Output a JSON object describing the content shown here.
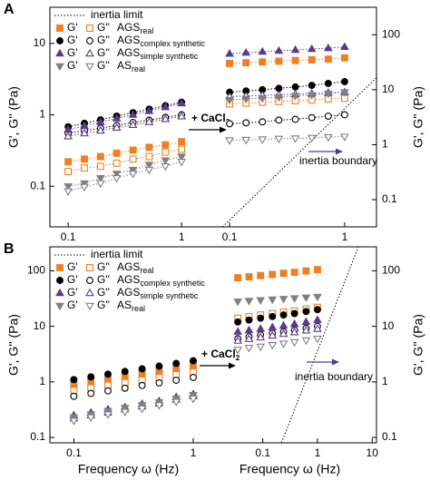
{
  "chart_data": [
    {
      "type": "scatter",
      "panel_label": "A",
      "ylabel": "G', G'' (Pa)",
      "xlog": true,
      "ylog": true,
      "xlim": [
        0.069,
        1.67
      ],
      "ylim": [
        0.027,
        32
      ],
      "xticks": [
        0.1,
        1
      ],
      "yticks": [
        0.1,
        1,
        10
      ],
      "x": [
        0.1,
        0.139,
        0.193,
        0.268,
        0.373,
        0.518,
        0.72,
        1.0
      ],
      "connect": true,
      "legend": {
        "inertia_label": "inertia limit",
        "moduli": [
          "G'",
          "G''"
        ]
      },
      "annotation": {
        "text": "+ CaCl",
        "sub": "2"
      },
      "series": [
        {
          "name": "AGS",
          "sub": "real",
          "color": "#f07f22",
          "marker": "square",
          "storage": [
            0.22,
            0.24,
            0.26,
            0.29,
            0.32,
            0.35,
            0.38,
            0.42
          ],
          "loss": [
            0.16,
            0.18,
            0.19,
            0.21,
            0.24,
            0.26,
            0.3,
            0.33
          ]
        },
        {
          "name": "AGS",
          "sub": "complex synthetic",
          "color": "#000000",
          "marker": "circle",
          "storage": [
            0.68,
            0.76,
            0.85,
            0.96,
            1.07,
            1.2,
            1.34,
            1.5
          ],
          "loss": [
            0.55,
            0.6,
            0.65,
            0.71,
            0.78,
            0.84,
            0.92,
            1.0
          ]
        },
        {
          "name": "AGS",
          "sub": "simple synthetic",
          "color": "#5b3a8e",
          "marker": "triangle-up",
          "storage": [
            0.62,
            0.7,
            0.79,
            0.89,
            1.0,
            1.13,
            1.28,
            1.45
          ],
          "loss": [
            0.5,
            0.55,
            0.6,
            0.66,
            0.72,
            0.79,
            0.87,
            0.95
          ]
        },
        {
          "name": "AS",
          "sub": "real",
          "color": "#808080",
          "marker": "triangle-down",
          "storage": [
            0.1,
            0.11,
            0.13,
            0.15,
            0.17,
            0.2,
            0.23,
            0.26
          ],
          "loss": [
            0.085,
            0.098,
            0.11,
            0.13,
            0.15,
            0.17,
            0.19,
            0.22
          ]
        }
      ]
    },
    {
      "type": "scatter",
      "ylabel": "G', G'' (Pa)",
      "xlog": true,
      "ylog": true,
      "xlim": [
        0.067,
        1.89
      ],
      "ylim": [
        0.032,
        316
      ],
      "xticks": [
        0.1,
        1
      ],
      "yticks": [
        0.1,
        1,
        10,
        100
      ],
      "x": [
        0.1,
        0.139,
        0.193,
        0.268,
        0.373,
        0.518,
        0.72,
        1.0
      ],
      "connect": true,
      "inertia": {
        "x": [
          0.087,
          1.89
        ],
        "y": [
          0.032,
          16.5
        ]
      },
      "boundary_label": "inertia boundary",
      "series": [
        {
          "color": "#f07f22",
          "marker": "square",
          "storage": [
            30,
            31,
            32,
            33,
            34,
            35,
            36,
            38
          ],
          "loss": [
            5.5,
            5.7,
            5.9,
            6.1,
            6.3,
            6.5,
            6.8,
            7
          ]
        },
        {
          "color": "#000000",
          "marker": "circle",
          "storage": [
            9,
            9.5,
            10,
            10.6,
            11.2,
            12,
            13,
            14
          ],
          "loss": [
            2.4,
            2.5,
            2.6,
            2.8,
            2.9,
            3.1,
            3.3,
            3.5
          ]
        },
        {
          "color": "#5b3a8e",
          "marker": "triangle-up",
          "storage": [
            45,
            47,
            49,
            51,
            53,
            55,
            57,
            60
          ],
          "loss": [
            7.5,
            7.7,
            7.9,
            8.1,
            8.3,
            8.5,
            8.8,
            9
          ]
        },
        {
          "color": "#808080",
          "marker": "triangle-down",
          "storage": [
            6.5,
            6.8,
            7,
            7.3,
            7.7,
            8,
            8.5,
            9
          ],
          "loss": [
            1.2,
            1.22,
            1.25,
            1.28,
            1.3,
            1.33,
            1.37,
            1.4
          ]
        }
      ]
    },
    {
      "type": "scatter",
      "panel_label": "B",
      "ylabel": "G', G'' (Pa)",
      "xlabel": "Frequency ω (Hz)",
      "xlog": true,
      "ylog": true,
      "xlim": [
        0.063,
        1.3
      ],
      "ylim": [
        0.08,
        270
      ],
      "xticks": [
        0.1,
        1
      ],
      "yticks": [
        0.1,
        1,
        10,
        100
      ],
      "x": [
        0.1,
        0.139,
        0.193,
        0.268,
        0.373,
        0.518,
        0.72,
        1.0
      ],
      "connect": false,
      "legend": {
        "inertia_label": "inertia limit",
        "moduli": [
          "G'",
          "G''"
        ]
      },
      "annotation": {
        "text": "+ CaCl",
        "sub": "2"
      },
      "series": [
        {
          "name": "AGS",
          "sub": "real",
          "color": "#f07f22",
          "marker": "square",
          "storage": [
            0.9,
            1.0,
            1.13,
            1.27,
            1.42,
            1.59,
            1.78,
            2.0
          ],
          "loss": [
            0.7,
            0.78,
            0.87,
            0.97,
            1.08,
            1.2,
            1.35,
            1.5
          ]
        },
        {
          "name": "AGS",
          "sub": "complex synthetic",
          "color": "#000000",
          "marker": "circle",
          "storage": [
            1.1,
            1.23,
            1.38,
            1.54,
            1.72,
            1.92,
            2.15,
            2.4
          ],
          "loss": [
            0.55,
            0.62,
            0.69,
            0.77,
            0.86,
            0.96,
            1.07,
            1.2
          ]
        },
        {
          "name": "AGS",
          "sub": "simple synthetic",
          "color": "#5b3a8e",
          "marker": "triangle-up",
          "storage": [
            0.25,
            0.28,
            0.32,
            0.35,
            0.4,
            0.45,
            0.53,
            0.6
          ],
          "loss": [
            0.22,
            0.25,
            0.28,
            0.32,
            0.36,
            0.41,
            0.48,
            0.55
          ]
        },
        {
          "name": "AS",
          "sub": "real",
          "color": "#808080",
          "marker": "triangle-down",
          "storage": [
            0.23,
            0.26,
            0.3,
            0.34,
            0.38,
            0.43,
            0.5,
            0.58
          ],
          "loss": [
            0.2,
            0.23,
            0.26,
            0.29,
            0.33,
            0.38,
            0.44,
            0.5
          ]
        }
      ]
    },
    {
      "type": "scatter",
      "ylabel": "G', G'' (Pa)",
      "xlabel": "Frequency ω (Hz)",
      "xlog": true,
      "ylog": true,
      "xlim": [
        0.015,
        12
      ],
      "ylim": [
        0.08,
        270
      ],
      "xticks": [
        0.1,
        1,
        10
      ],
      "yticks": [
        0.1,
        1,
        10,
        100
      ],
      "x": [
        0.035,
        0.056,
        0.091,
        0.15,
        0.24,
        0.38,
        0.62,
        1.0
      ],
      "connect": false,
      "inertia": {
        "x": [
          0.22,
          5.6
        ],
        "y": [
          0.08,
          270
        ]
      },
      "boundary_label": "inertia boundary",
      "series": [
        {
          "color": "#f07f22",
          "marker": "square",
          "storage": [
            75,
            78,
            82,
            86,
            90,
            94,
            99,
            105
          ],
          "loss": [
            14,
            15,
            16,
            17,
            18,
            19,
            20.5,
            22
          ]
        },
        {
          "color": "#000000",
          "marker": "circle",
          "storage": [
            12,
            13,
            14,
            15,
            16,
            17,
            18.5,
            20
          ],
          "loss": [
            6,
            6.5,
            7,
            7.5,
            8,
            8.5,
            9.2,
            10
          ]
        },
        {
          "color": "#5b3a8e",
          "marker": "triangle-up",
          "storage": [
            8,
            8.5,
            9,
            9.6,
            10.3,
            11,
            12,
            13
          ],
          "loss": [
            5.5,
            5.9,
            6.3,
            6.8,
            7.3,
            7.8,
            8.4,
            9
          ]
        },
        {
          "color": "#808080",
          "marker": "triangle-down",
          "storage": [
            28,
            28.8,
            29.6,
            30.4,
            31.2,
            32,
            33,
            34
          ],
          "loss": [
            3.8,
            4.1,
            4.3,
            4.6,
            4.9,
            5.2,
            5.6,
            6
          ]
        }
      ]
    }
  ]
}
